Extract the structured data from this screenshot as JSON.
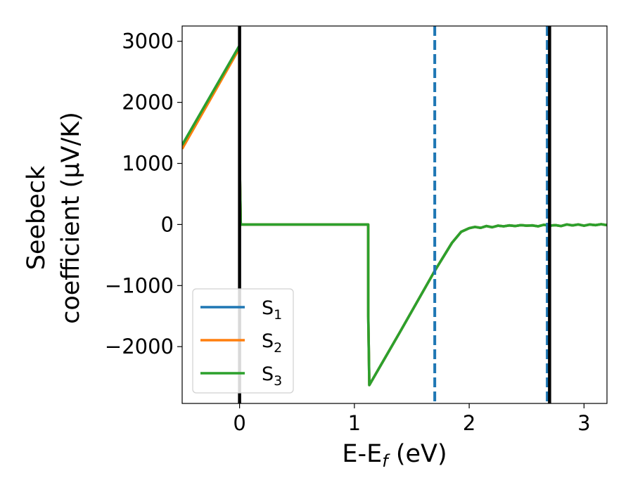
{
  "chart_data": {
    "type": "line",
    "title": "",
    "xlabel": {
      "main": "E-E",
      "sub": "f",
      "tail": " (eV)"
    },
    "ylabel": {
      "line1": "Seebeck",
      "line2": "coefficient  (μV/K)"
    },
    "xlim": [
      -0.5,
      3.2
    ],
    "ylim": [
      -2930,
      3250
    ],
    "xticks": [
      0,
      1,
      2,
      3
    ],
    "yticks": [
      -2000,
      -1000,
      0,
      1000,
      2000,
      3000
    ],
    "ytick_labels": [
      "−2000",
      "−1000",
      "0",
      "1000",
      "2000",
      "3000"
    ],
    "grid": false,
    "legend_position": "lower-left",
    "series": [
      {
        "name": "S",
        "sub": "1",
        "color": "#1f77b4",
        "x": [
          -0.5,
          0.0,
          0.001,
          0.01,
          1.12,
          1.121,
          1.13,
          1.4,
          1.7,
          1.85,
          1.93,
          2.0,
          2.05,
          2.1,
          2.15,
          2.2,
          2.25,
          2.3,
          2.35,
          2.4,
          2.45,
          2.5,
          2.55,
          2.6,
          2.65,
          2.7,
          2.75,
          2.8,
          2.85,
          2.9,
          2.95,
          3.0,
          3.05,
          3.1,
          3.15,
          3.2
        ],
        "y": [
          1300,
          2930,
          1000,
          0,
          0,
          -1500,
          -2630,
          -1750,
          -760,
          -300,
          -120,
          -60,
          -40,
          -55,
          -25,
          -45,
          -20,
          -30,
          -15,
          -25,
          -10,
          -20,
          -15,
          -30,
          -5,
          -20,
          -10,
          -25,
          0,
          -15,
          0,
          -20,
          0,
          -10,
          5,
          -10
        ]
      },
      {
        "name": "S",
        "sub": "2",
        "color": "#ff7f0e",
        "x": [
          -0.5,
          0.0,
          0.001,
          0.01,
          1.12,
          1.121,
          1.13,
          1.4,
          1.7,
          1.85,
          1.93,
          2.0,
          2.05,
          2.1,
          2.15,
          2.2,
          2.25,
          2.3,
          2.35,
          2.4,
          2.45,
          2.5,
          2.55,
          2.6,
          2.65,
          2.7,
          2.75,
          2.8,
          2.85,
          2.9,
          2.95,
          3.0,
          3.05,
          3.1,
          3.15,
          3.2
        ],
        "y": [
          1240,
          2890,
          1000,
          0,
          0,
          -1500,
          -2630,
          -1750,
          -760,
          -300,
          -120,
          -60,
          -40,
          -55,
          -25,
          -45,
          -20,
          -30,
          -15,
          -25,
          -10,
          -20,
          -15,
          -30,
          -5,
          -20,
          -10,
          -25,
          0,
          -15,
          0,
          -20,
          0,
          -10,
          5,
          -10
        ]
      },
      {
        "name": "S",
        "sub": "3",
        "color": "#2ca02c",
        "x": [
          -0.5,
          0.0,
          0.001,
          0.01,
          1.12,
          1.121,
          1.13,
          1.4,
          1.7,
          1.85,
          1.93,
          2.0,
          2.05,
          2.1,
          2.15,
          2.2,
          2.25,
          2.3,
          2.35,
          2.4,
          2.45,
          2.5,
          2.55,
          2.6,
          2.65,
          2.7,
          2.75,
          2.8,
          2.85,
          2.9,
          2.95,
          3.0,
          3.05,
          3.1,
          3.15,
          3.2
        ],
        "y": [
          1300,
          2930,
          1000,
          0,
          0,
          -1500,
          -2630,
          -1750,
          -760,
          -300,
          -120,
          -60,
          -40,
          -55,
          -25,
          -45,
          -20,
          -30,
          -15,
          -25,
          -10,
          -20,
          -15,
          -30,
          -5,
          -20,
          -10,
          -25,
          0,
          -15,
          0,
          -20,
          0,
          -10,
          5,
          -10
        ]
      }
    ],
    "vlines": [
      {
        "x": 0.0,
        "color": "#000000",
        "style": "solid"
      },
      {
        "x": 1.7,
        "color": "#1f77b4",
        "style": "dashed"
      },
      {
        "x": 2.68,
        "color": "#1f77b4",
        "style": "dashed"
      },
      {
        "x": 2.7,
        "color": "#000000",
        "style": "solid"
      }
    ]
  }
}
